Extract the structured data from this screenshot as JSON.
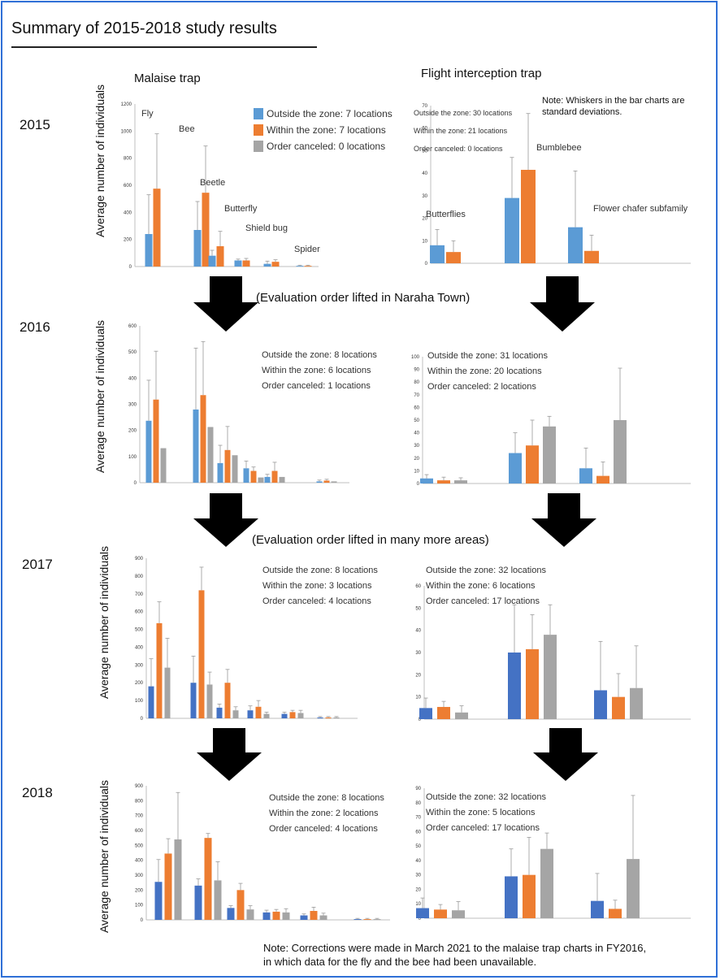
{
  "title": "Summary of 2015-2018 study results",
  "column_headers": {
    "malaise": "Malaise trap",
    "flight": "Flight interception trap"
  },
  "years": [
    "2015",
    "2016",
    "2017",
    "2018"
  ],
  "ylabel": "Average number of individuals",
  "lifted_notes": [
    "(Evaluation order lifted in Naraha Town)",
    "(Evaluation order lifted in many more areas)"
  ],
  "whisker_note": [
    "Note: Whiskers in the bar charts are",
    "standard deviations."
  ],
  "bottom_note": [
    "Note: Corrections were made in March 2021 to the malaise trap charts in FY2016,",
    "in which data for the fly and the bee had been unavailable."
  ],
  "colors": {
    "outside": "#5b9bd5",
    "outside_dark": "#4472c4",
    "within": "#ed7d31",
    "canceled": "#a5a5a5",
    "arrow": "#000000",
    "frame": "#2f6fd6"
  },
  "chart_data": [
    {
      "id": "m2015",
      "type": "bar",
      "trap": "Malaise trap",
      "year": "2015",
      "ylim": [
        0,
        1200
      ],
      "yticks": [
        0,
        200,
        400,
        600,
        800,
        1000,
        1200
      ],
      "legend": [
        "Outside the zone: 7 locations",
        "Within the zone: 7 locations",
        "Order canceled: 0 locations"
      ],
      "categories": [
        "Fly",
        "Bee",
        "Beetle",
        "Butterfly",
        "Shield bug",
        "Spider"
      ],
      "series": [
        {
          "name": "Outside the zone",
          "values": [
            240,
            270,
            80,
            45,
            20,
            5
          ],
          "err": [
            290,
            210,
            40,
            10,
            20,
            5
          ]
        },
        {
          "name": "Within the zone",
          "values": [
            575,
            545,
            150,
            45,
            35,
            5
          ],
          "err": [
            405,
            345,
            110,
            15,
            15,
            5
          ]
        }
      ]
    },
    {
      "id": "f2015",
      "type": "bar",
      "trap": "Flight interception trap",
      "year": "2015",
      "ylim": [
        0,
        70
      ],
      "yticks": [
        0,
        10,
        20,
        30,
        40,
        50,
        60,
        70
      ],
      "legend": [
        "Outside the zone: 30 locations",
        "Within the zone: 21 locations",
        "Order canceled: 0 locations"
      ],
      "categories": [
        "Butterflies",
        "Bumblebee",
        "Flower chafer subfamily"
      ],
      "series": [
        {
          "name": "Outside the zone",
          "values": [
            8,
            29,
            16
          ],
          "err": [
            7,
            18,
            25
          ]
        },
        {
          "name": "Within the zone",
          "values": [
            5,
            41.5,
            5.5
          ],
          "err": [
            5,
            25,
            7
          ]
        }
      ]
    },
    {
      "id": "m2016",
      "type": "bar",
      "trap": "Malaise trap",
      "year": "2016",
      "ylim": [
        0,
        600
      ],
      "yticks": [
        0,
        100,
        200,
        300,
        400,
        500,
        600
      ],
      "legend": [
        "Outside the zone: 8 locations",
        "Within the zone: 6 locations",
        "Order canceled: 1 locations"
      ],
      "categories": [
        "Fly",
        "Bee",
        "Beetle",
        "Butterfly",
        "Shield bug",
        "Spider"
      ],
      "series": [
        {
          "name": "Outside the zone",
          "values": [
            237,
            280,
            75,
            55,
            22,
            5
          ],
          "err": [
            155,
            235,
            68,
            28,
            10,
            5
          ]
        },
        {
          "name": "Within the zone",
          "values": [
            318,
            335,
            125,
            45,
            45,
            8
          ],
          "err": [
            185,
            205,
            90,
            15,
            33,
            5
          ]
        },
        {
          "name": "Order canceled",
          "values": [
            132,
            213,
            105,
            20,
            22,
            5
          ],
          "err": [
            0,
            0,
            0,
            0,
            0,
            0
          ]
        }
      ]
    },
    {
      "id": "f2016",
      "type": "bar",
      "trap": "Flight interception trap",
      "year": "2016",
      "ylim": [
        0,
        100
      ],
      "yticks": [
        0,
        10,
        20,
        30,
        40,
        50,
        60,
        70,
        80,
        90,
        100
      ],
      "legend": [
        "Outside the zone: 31 locations",
        "Within the zone: 20 locations",
        "Order canceled: 2 locations"
      ],
      "categories": [
        "Butterflies",
        "Bumblebee",
        "Flower chafer subfamily"
      ],
      "series": [
        {
          "name": "Outside the zone",
          "values": [
            4,
            24,
            12
          ],
          "err": [
            3,
            16,
            16
          ]
        },
        {
          "name": "Within the zone",
          "values": [
            2.5,
            30,
            6
          ],
          "err": [
            2.5,
            20,
            11
          ]
        },
        {
          "name": "Order canceled",
          "values": [
            2.5,
            45,
            50
          ],
          "err": [
            2,
            8,
            41
          ]
        }
      ]
    },
    {
      "id": "m2017",
      "type": "bar",
      "trap": "Malaise trap",
      "year": "2017",
      "ylim": [
        0,
        900
      ],
      "yticks": [
        0,
        100,
        200,
        300,
        400,
        500,
        600,
        700,
        800,
        900
      ],
      "legend": [
        "Outside the zone: 8 locations",
        "Within the zone: 3 locations",
        "Order canceled: 4 locations"
      ],
      "categories": [
        "Fly",
        "Bee",
        "Beetle",
        "Butterfly",
        "Shield bug",
        "Spider"
      ],
      "series": [
        {
          "name": "Outside the zone",
          "values": [
            180,
            200,
            60,
            45,
            25,
            5
          ],
          "err": [
            155,
            150,
            20,
            25,
            10,
            5
          ]
        },
        {
          "name": "Within the zone",
          "values": [
            535,
            720,
            200,
            65,
            35,
            5
          ],
          "err": [
            120,
            130,
            75,
            35,
            10,
            5
          ]
        },
        {
          "name": "Order canceled",
          "values": [
            285,
            190,
            45,
            25,
            30,
            5
          ],
          "err": [
            165,
            70,
            20,
            10,
            15,
            5
          ]
        }
      ]
    },
    {
      "id": "f2017",
      "type": "bar",
      "trap": "Flight interception trap",
      "year": "2017",
      "ylim": [
        0,
        60
      ],
      "yticks": [
        0,
        10,
        20,
        30,
        40,
        50,
        60
      ],
      "legend": [
        "Outside the zone: 32 locations",
        "Within the zone: 6 locations",
        "Order canceled: 17 locations"
      ],
      "categories": [
        "Butterflies",
        "Bumblebee",
        "Flower chafer subfamily"
      ],
      "series": [
        {
          "name": "Outside the zone",
          "values": [
            5,
            30,
            13
          ],
          "err": [
            4.5,
            21.5,
            22
          ]
        },
        {
          "name": "Within the zone",
          "values": [
            5.5,
            31.5,
            10
          ],
          "err": [
            2.5,
            15.5,
            10.5
          ]
        },
        {
          "name": "Order canceled",
          "values": [
            3,
            38,
            14
          ],
          "err": [
            3,
            13.5,
            19
          ]
        }
      ]
    },
    {
      "id": "m2018",
      "type": "bar",
      "trap": "Malaise trap",
      "year": "2018",
      "ylim": [
        0,
        900
      ],
      "yticks": [
        0,
        100,
        200,
        300,
        400,
        500,
        600,
        700,
        800,
        900
      ],
      "legend": [
        "Outside the zone: 8 locations",
        "Within the zone: 2 locations",
        "Order canceled: 4 locations"
      ],
      "categories": [
        "Fly",
        "Bee",
        "Beetle",
        "Butterfly",
        "Shield bug",
        "Spider"
      ],
      "series": [
        {
          "name": "Outside the zone",
          "values": [
            255,
            230,
            80,
            50,
            30,
            5
          ],
          "err": [
            150,
            45,
            15,
            15,
            10,
            5
          ]
        },
        {
          "name": "Within the zone",
          "values": [
            445,
            550,
            200,
            55,
            60,
            5
          ],
          "err": [
            100,
            30,
            45,
            15,
            25,
            5
          ]
        },
        {
          "name": "Order canceled",
          "values": [
            540,
            265,
            70,
            50,
            30,
            5
          ],
          "err": [
            315,
            125,
            25,
            25,
            15,
            5
          ]
        }
      ]
    },
    {
      "id": "f2018",
      "type": "bar",
      "trap": "Flight interception trap",
      "year": "2018",
      "ylim": [
        0,
        90
      ],
      "yticks": [
        0,
        10,
        20,
        30,
        40,
        50,
        60,
        70,
        80,
        90
      ],
      "legend": [
        "Outside the zone: 32 locations",
        "Within the zone: 5 locations",
        "Order canceled: 17 locations"
      ],
      "categories": [
        "Butterflies",
        "Bumblebee",
        "Flower chafer subfamily"
      ],
      "series": [
        {
          "name": "Outside the zone",
          "values": [
            7,
            29,
            12
          ],
          "err": [
            7,
            19,
            19
          ]
        },
        {
          "name": "Within the zone",
          "values": [
            6,
            30,
            6.5
          ],
          "err": [
            3.5,
            26,
            6
          ]
        },
        {
          "name": "Order canceled",
          "values": [
            5.5,
            48,
            41
          ],
          "err": [
            6,
            11,
            44
          ]
        }
      ]
    }
  ]
}
